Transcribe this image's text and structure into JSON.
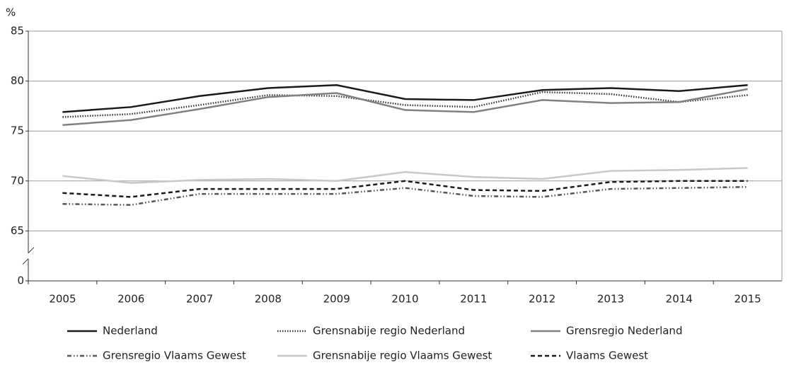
{
  "chart_data": {
    "type": "line",
    "y_label": "%",
    "categories": [
      "2005",
      "2006",
      "2007",
      "2008",
      "2009",
      "2010",
      "2011",
      "2012",
      "2013",
      "2014",
      "2015"
    ],
    "series": [
      {
        "name": "Nederland",
        "color": "#1a1a1a",
        "dash": "solid",
        "values": [
          76.9,
          77.4,
          78.5,
          79.3,
          79.6,
          78.2,
          78.1,
          79.1,
          79.3,
          79.0,
          79.6
        ]
      },
      {
        "name": "Grensnabije regio Nederland",
        "color": "#333333",
        "dash": "dotted",
        "values": [
          76.4,
          76.7,
          77.6,
          78.6,
          78.5,
          77.6,
          77.4,
          78.9,
          78.7,
          77.9,
          78.6
        ]
      },
      {
        "name": "Grensregio Nederland",
        "color": "#808080",
        "dash": "solid",
        "values": [
          75.6,
          76.1,
          77.2,
          78.4,
          78.8,
          77.1,
          76.9,
          78.1,
          77.8,
          77.9,
          79.2
        ]
      },
      {
        "name": "Grensregio Vlaams Gewest",
        "color": "#555555",
        "dash": "dashdotdot",
        "values": [
          67.7,
          67.6,
          68.7,
          68.7,
          68.7,
          69.3,
          68.5,
          68.4,
          69.2,
          69.3,
          69.4
        ]
      },
      {
        "name": "Grensnabije regio Vlaams Gewest",
        "color": "#c8c8c8",
        "dash": "solid",
        "values": [
          70.5,
          69.8,
          70.1,
          70.2,
          70.0,
          70.9,
          70.4,
          70.2,
          71.0,
          71.1,
          71.3
        ]
      },
      {
        "name": "Vlaams Gewest",
        "color": "#1a1a1a",
        "dash": "dashed",
        "values": [
          68.8,
          68.4,
          69.2,
          69.2,
          69.2,
          70.0,
          69.1,
          69.0,
          69.9,
          70.0,
          70.0
        ]
      }
    ],
    "ylim": [
      0,
      85
    ],
    "yticks": [
      0,
      65,
      70,
      75,
      80,
      85
    ],
    "axis_break": true,
    "grid": true
  }
}
